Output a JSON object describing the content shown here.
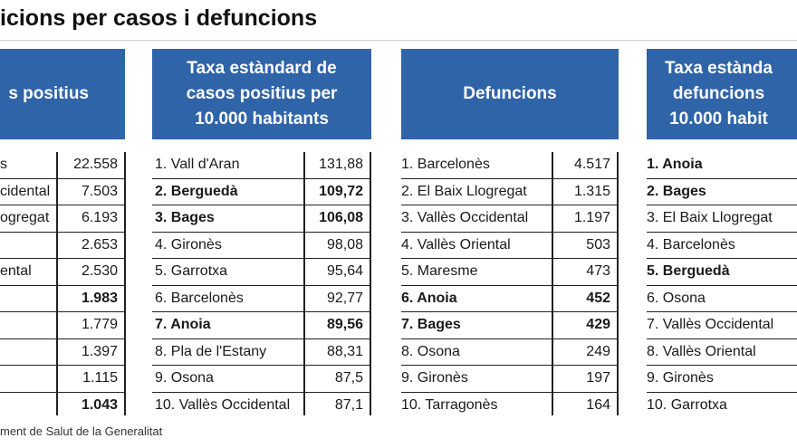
{
  "title": "icions per casos i defuncions",
  "source": "ment de Salut de la Generalitat",
  "headers": {
    "col1": "s positius",
    "col2": "Taxa estàndard de\ncasos positius per\n10.000 habitants",
    "col3": "Defuncions",
    "col4": "Taxa estànda\ndefuncions\n10.000 habit"
  },
  "col1": {
    "names": [
      "s",
      "cidental",
      "ogregat",
      "",
      "ental",
      "",
      "",
      "",
      "",
      ""
    ],
    "values": [
      "22.558",
      "7.503",
      "6.193",
      "2.653",
      "2.530",
      "1.983",
      "1.779",
      "1.397",
      "1.115",
      "1.043"
    ],
    "bold": [
      false,
      false,
      false,
      false,
      false,
      true,
      false,
      false,
      false,
      true
    ]
  },
  "col2": {
    "names": [
      "1. Vall d'Aran",
      "2. Berguedà",
      "3. Bages",
      "4. Gironès",
      "5. Garrotxa",
      "6. Barcelonès",
      "7. Anoia",
      "8. Pla de l'Estany",
      "9. Osona",
      "10. Vallès Occidental"
    ],
    "values": [
      "131,88",
      "109,72",
      "106,08",
      "98,08",
      "95,64",
      "92,77",
      "89,56",
      "88,31",
      "87,5",
      "87,1"
    ],
    "bold": [
      false,
      true,
      true,
      false,
      false,
      false,
      true,
      false,
      false,
      false
    ]
  },
  "col3": {
    "names": [
      "1. Barcelonès",
      "2. El Baix Llogregat",
      "3. Vallès Occidental",
      "4. Vallès Oriental",
      "5. Maresme",
      "6. Anoia",
      "7. Bages",
      "8. Osona",
      "9. Gironès",
      "10. Tarragonès"
    ],
    "values": [
      "4.517",
      "1.315",
      "1.197",
      "503",
      "473",
      "452",
      "429",
      "249",
      "197",
      "164"
    ],
    "bold": [
      false,
      false,
      false,
      false,
      false,
      true,
      true,
      false,
      false,
      false
    ]
  },
  "col4": {
    "names": [
      "1. Anoia",
      "2. Bages",
      "3. El Baix Llogregat",
      "4. Barcelonès",
      "5. Berguedà",
      "6. Osona",
      "7. Vallès Occidental",
      "8. Vallès Oriental",
      "9. Gironès",
      "10. Garrotxa"
    ],
    "bold": [
      true,
      true,
      false,
      false,
      true,
      false,
      false,
      false,
      false,
      false
    ]
  }
}
